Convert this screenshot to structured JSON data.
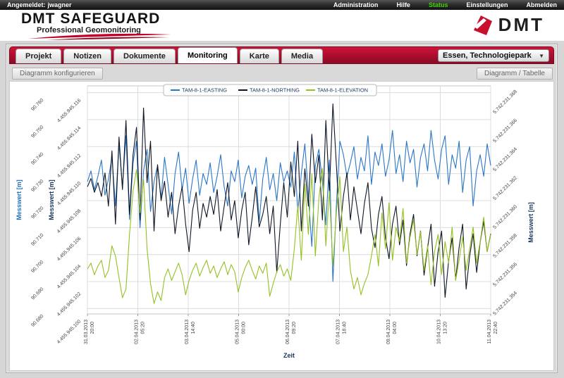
{
  "topbar": {
    "logged_in_label": "Angemeldet:",
    "username": "jwagner",
    "menu": [
      "Administration",
      "Hilfe",
      "Status",
      "Einstellungen",
      "Abmelden"
    ],
    "status_color": "#3fd400"
  },
  "header": {
    "logo_title": "DMT SAFEGUARD",
    "logo_subtitle": "Professional Geomonitoring",
    "brand": "DMT",
    "brand_red": "#c8102e"
  },
  "tabs": {
    "items": [
      "Projekt",
      "Notizen",
      "Dokumente",
      "Monitoring",
      "Karte",
      "Media"
    ],
    "active": "Monitoring"
  },
  "location_select": {
    "value": "Essen, Technologiepark"
  },
  "toolbar": {
    "configure_label": "Diagramm konfigurieren",
    "view_toggle_label": "Diagramm / Tabelle"
  },
  "chart_data": {
    "type": "line",
    "xlabel": "Zeit",
    "grid": true,
    "legend_position": "top-center",
    "x_tick_labels": [
      [
        "31.03.2013",
        "20:00"
      ],
      [
        "02.04.2013",
        "05:20"
      ],
      [
        "03.04.2013",
        "14:40"
      ],
      [
        "05.04.2013",
        "00:00"
      ],
      [
        "06.04.2013",
        "09:20"
      ],
      [
        "07.04.2013",
        "18:40"
      ],
      [
        "09.04.2013",
        "04:00"
      ],
      [
        "10.04.2013",
        "13:20"
      ],
      [
        "11.04.2013",
        "22:40"
      ]
    ],
    "axes": {
      "left1": {
        "label": "Messwert [m]",
        "color": "#1f6fc0",
        "range": [
          90.678,
          90.7625
        ],
        "tick_values": [
          90.76,
          90.75,
          90.74,
          90.73,
          90.72,
          90.71,
          90.7,
          90.69,
          90.68
        ],
        "tick_labels": [
          "90.760",
          "90.750",
          "90.740",
          "90.730",
          "90.720",
          "90.710",
          "90.700",
          "90.690",
          "90.680"
        ]
      },
      "left2": {
        "label": "Messwert [m]",
        "color": "#16355c",
        "range": [
          4455945.1,
          4455945.1165
        ],
        "tick_values": [
          4455945.116,
          4455945.114,
          4455945.112,
          4455945.11,
          4455945.108,
          4455945.106,
          4455945.104,
          4455945.102,
          4455945.1
        ],
        "tick_labels": [
          "4.455.945.116",
          "4.455.945.114",
          "4.455.945.112",
          "4.455.945.110",
          "4.455.945.108",
          "4.455.945.106",
          "4.455.945.104",
          "4.455.945.102",
          "4.455.945.100"
        ]
      },
      "right": {
        "label": "Messwert [m]",
        "color": "#16355c",
        "range": [
          5742231.35347,
          5742231.36932
        ],
        "tick_values": [
          5742231.368,
          5742231.366,
          5742231.364,
          5742231.362,
          5742231.36,
          5742231.358,
          5742231.356,
          5742231.354
        ],
        "tick_labels": [
          "5.742.231.368",
          "5.742.231.366",
          "5.742.231.364",
          "5.742.231.362",
          "5.742.231.360",
          "5.742.231.358",
          "5.742.231.356",
          "5.742.231.354"
        ]
      }
    },
    "series": [
      {
        "name": "TAM-8-1-EASTING",
        "color": "#2a76c8",
        "axis": "left1",
        "base": 0,
        "values": [
          90.727,
          90.731,
          90.724,
          90.729,
          90.735,
          90.722,
          90.728,
          90.736,
          90.718,
          90.741,
          90.725,
          90.744,
          90.713,
          90.734,
          90.742,
          90.71,
          90.731,
          90.739,
          90.716,
          90.727,
          90.733,
          90.721,
          90.736,
          90.726,
          90.715,
          90.73,
          90.738,
          90.724,
          90.732,
          90.719,
          90.728,
          90.735,
          90.722,
          90.73,
          90.726,
          90.734,
          90.723,
          90.729,
          90.737,
          90.725,
          90.718,
          90.731,
          90.727,
          90.735,
          90.721,
          90.729,
          90.733,
          90.726,
          90.732,
          90.712,
          90.728,
          90.736,
          90.724,
          90.73,
          90.72,
          90.734,
          90.727,
          90.731,
          90.725,
          90.738,
          90.716,
          90.73,
          90.741,
          90.722,
          90.703,
          90.733,
          90.739,
          90.727,
          90.711,
          90.735,
          90.69,
          90.718,
          90.742,
          90.737,
          90.729,
          90.734,
          90.74,
          90.728,
          90.736,
          90.731,
          90.744,
          90.726,
          90.738,
          90.733,
          90.741,
          90.729,
          90.735,
          90.746,
          90.73,
          90.737,
          90.727,
          90.742,
          90.734,
          90.739,
          90.725,
          90.736,
          90.741,
          90.731,
          90.746,
          90.735,
          90.728,
          90.739,
          90.744,
          90.726,
          90.737,
          90.732,
          90.742,
          90.723,
          90.735,
          90.74,
          90.718,
          90.731,
          90.737,
          90.729,
          90.741,
          90.733
        ]
      },
      {
        "name": "TAM-8-1-NORTHING",
        "color": "#0e1524",
        "axis": "left2",
        "base": 4455945,
        "values": [
          0.1092,
          0.1098,
          0.1088,
          0.1095,
          0.1085,
          0.1102,
          0.1078,
          0.1118,
          0.1065,
          0.1128,
          0.109,
          0.114,
          0.1072,
          0.1115,
          0.1135,
          0.1068,
          0.1149,
          0.1095,
          0.1125,
          0.106,
          0.1108,
          0.1082,
          0.1096,
          0.107,
          0.1088,
          0.1058,
          0.1078,
          0.1092,
          0.1065,
          0.1045,
          0.1075,
          0.1088,
          0.1062,
          0.108,
          0.107,
          0.1085,
          0.1072,
          0.109,
          0.106,
          0.1078,
          0.1095,
          0.1068,
          0.1082,
          0.1055,
          0.1075,
          0.1088,
          0.105,
          0.107,
          0.1092,
          0.1063,
          0.1072,
          0.1085,
          0.1058,
          0.1078,
          0.103,
          0.1065,
          0.1095,
          0.107,
          0.111,
          0.1085,
          0.1125,
          0.106,
          0.1105,
          0.1078,
          0.113,
          0.1095,
          0.1115,
          0.1068,
          0.114,
          0.1088,
          0.1152,
          0.1108,
          0.106,
          0.1085,
          0.1102,
          0.1068,
          0.1092,
          0.1075,
          0.1058,
          0.108,
          0.1095,
          0.1062,
          0.1048,
          0.1072,
          0.1085,
          0.1055,
          0.104,
          0.1065,
          0.1078,
          0.105,
          0.1068,
          0.1035,
          0.1058,
          0.1072,
          0.1042,
          0.106,
          0.1028,
          0.1048,
          0.1065,
          0.102,
          0.1045,
          0.106,
          0.1012,
          0.1038,
          0.1055,
          0.1025,
          0.1048,
          0.1065,
          0.1018,
          0.1042,
          0.1058,
          0.103,
          0.1052,
          0.1067,
          0.1045,
          0.1058
        ]
      },
      {
        "name": "TAM-8-1-ELEVATION",
        "color": "#94c122",
        "axis": "right",
        "base": 5742231,
        "values": [
          0.3566,
          0.357,
          0.3562,
          0.3568,
          0.3572,
          0.356,
          0.3565,
          0.3582,
          0.3575,
          0.356,
          0.3546,
          0.3552,
          0.359,
          0.362,
          0.3635,
          0.3605,
          0.3628,
          0.358,
          0.3556,
          0.3542,
          0.355,
          0.3544,
          0.356,
          0.3566,
          0.3558,
          0.3564,
          0.357,
          0.3562,
          0.3548,
          0.3558,
          0.3565,
          0.357,
          0.3561,
          0.3567,
          0.3572,
          0.3563,
          0.3568,
          0.356,
          0.3566,
          0.3571,
          0.3562,
          0.3569,
          0.3564,
          0.355,
          0.356,
          0.3567,
          0.3572,
          0.3565,
          0.3559,
          0.3568,
          0.3563,
          0.357,
          0.3547,
          0.3556,
          0.3564,
          0.3569,
          0.3561,
          0.3566,
          0.3558,
          0.358,
          0.361,
          0.3572,
          0.3625,
          0.359,
          0.3632,
          0.3575,
          0.3615,
          0.3636,
          0.3582,
          0.362,
          0.3568,
          0.3605,
          0.363,
          0.3578,
          0.3595,
          0.3565,
          0.3552,
          0.356,
          0.3548,
          0.3556,
          0.3562,
          0.3575,
          0.359,
          0.3568,
          0.3605,
          0.358,
          0.3612,
          0.3572,
          0.3595,
          0.3585,
          0.3608,
          0.357,
          0.3588,
          0.36,
          0.3576,
          0.3592,
          0.3565,
          0.3582,
          0.3555,
          0.3578,
          0.359,
          0.3562,
          0.3585,
          0.357,
          0.3595,
          0.3558,
          0.3572,
          0.3588,
          0.3565,
          0.358,
          0.3595,
          0.357,
          0.3585,
          0.3602,
          0.3578,
          0.359
        ]
      }
    ]
  }
}
